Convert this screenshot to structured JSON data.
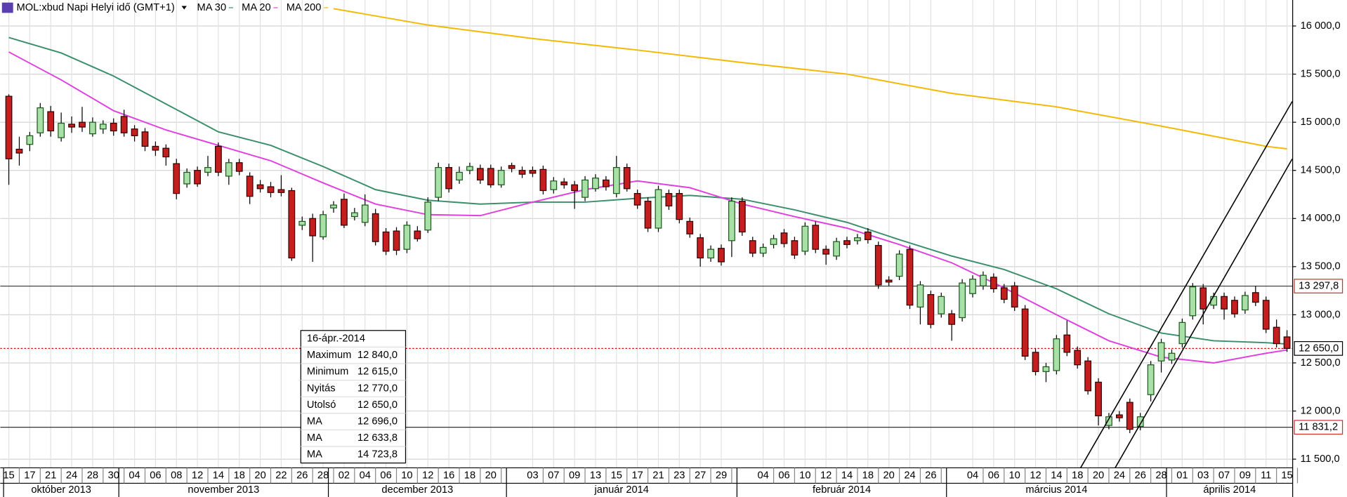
{
  "chart_data": {
    "type": "candlestick",
    "header": "MOL:xbud Napi Helyi idő (GMT+1)",
    "ylim": [
      11410,
      16270
    ],
    "yticks": [
      {
        "value": 11500,
        "label": "11 500,0"
      },
      {
        "value": 12000,
        "label": "12 000,0"
      },
      {
        "value": 12500,
        "label": "12 500,0"
      },
      {
        "value": 13000,
        "label": "13 000,0"
      },
      {
        "value": 13500,
        "label": "13 500,0"
      },
      {
        "value": 14000,
        "label": "14 000,0"
      },
      {
        "value": 14500,
        "label": "14 500,0"
      },
      {
        "value": 15000,
        "label": "15 000,0"
      },
      {
        "value": 15500,
        "label": "15 500,0"
      },
      {
        "value": 16000,
        "label": "16 000,0"
      }
    ],
    "grid": true,
    "up_color": "#a8e0a8",
    "down_color": "#c41e1e",
    "open": [
      15270,
      14720,
      14770,
      14890,
      15110,
      14840,
      14980,
      15000,
      14880,
      14930,
      14990,
      15060,
      14930,
      14900,
      14750,
      14730,
      14570,
      14360,
      14500,
      14480,
      14750,
      14440,
      14580,
      14440,
      14350,
      14330,
      14300,
      14290,
      13930,
      14000,
      13810,
      14110,
      14200,
      14020,
      13960,
      14050,
      13860,
      13870,
      13680,
      13870,
      13880,
      14220,
      14530,
      14400,
      14500,
      14520,
      14520,
      14350,
      14550,
      14500,
      14500,
      14510,
      14300,
      14380,
      14350,
      14220,
      14310,
      14400,
      14260,
      14530,
      14260,
      14180,
      13900,
      14260,
      14260,
      13970,
      13800,
      13590,
      13690,
      13770,
      14180,
      13770,
      13640,
      13730,
      13850,
      13770,
      13660,
      13930,
      13680,
      13610,
      13770,
      13770,
      13860,
      13720,
      13360,
      13400,
      13680,
      13080,
      13210,
      13010,
      13010,
      12970,
      13220,
      13300,
      13390,
      13280,
      13300,
      13060,
      12610,
      12410,
      12420,
      12790,
      12630,
      12520,
      12300,
      11850,
      11960,
      12090,
      11840,
      12170,
      12520,
      12530,
      12700,
      12990,
      13280,
      13100,
      13190,
      13150,
      13050,
      13230,
      13150,
      12870,
      12770
    ],
    "high": [
      15290,
      14850,
      14900,
      15200,
      15170,
      15100,
      15060,
      15160,
      15050,
      15020,
      15040,
      15130,
      14970,
      14940,
      14800,
      14770,
      14620,
      14520,
      14540,
      14650,
      14790,
      14620,
      14620,
      14480,
      14400,
      14380,
      14450,
      14320,
      14020,
      14050,
      14080,
      14180,
      14260,
      14110,
      14250,
      14100,
      13900,
      13910,
      13970,
      13920,
      14220,
      14580,
      14570,
      14540,
      14580,
      14560,
      14560,
      14540,
      14580,
      14540,
      14540,
      14550,
      14430,
      14420,
      14390,
      14440,
      14460,
      14440,
      14650,
      14570,
      14300,
      14220,
      14340,
      14300,
      14300,
      14010,
      13840,
      13720,
      13730,
      14220,
      14220,
      13810,
      13740,
      13830,
      13890,
      13810,
      13960,
      13970,
      13720,
      13800,
      13810,
      13840,
      13900,
      13760,
      13400,
      13670,
      13720,
      13350,
      13250,
      13230,
      13050,
      13370,
      13410,
      13450,
      13430,
      13320,
      13340,
      13100,
      12650,
      12500,
      12790,
      12940,
      12670,
      12560,
      12340,
      11980,
      12000,
      12130,
      11980,
      12520,
      12750,
      12640,
      12960,
      13330,
      13320,
      13230,
      13230,
      13190,
      13240,
      13300,
      13190,
      12950,
      12840
    ],
    "low": [
      14350,
      14550,
      14700,
      14850,
      14850,
      14800,
      14890,
      14900,
      14850,
      14880,
      14860,
      14850,
      14800,
      14700,
      14650,
      14550,
      14200,
      14320,
      14330,
      14440,
      14440,
      14350,
      14450,
      14150,
      14270,
      14220,
      14230,
      13560,
      13880,
      13550,
      13780,
      14060,
      13900,
      13980,
      13920,
      13720,
      13620,
      13620,
      13640,
      13760,
      13850,
      14180,
      14270,
      14360,
      14460,
      14360,
      14320,
      14320,
      14480,
      14420,
      14430,
      14250,
      14260,
      14310,
      14100,
      14180,
      14280,
      14290,
      14220,
      14280,
      14100,
      13860,
      13860,
      14090,
      13950,
      13800,
      13500,
      13550,
      13510,
      13600,
      13820,
      13600,
      13600,
      13690,
      13700,
      13580,
      13620,
      13640,
      13520,
      13570,
      13690,
      13730,
      13740,
      13270,
      13300,
      13360,
      13060,
      12900,
      12860,
      12970,
      12730,
      12930,
      13180,
      13260,
      13230,
      13120,
      13040,
      12530,
      12370,
      12300,
      12380,
      12570,
      12440,
      12170,
      11850,
      11810,
      11890,
      11770,
      11800,
      12100,
      12400,
      12490,
      12660,
      12950,
      12900,
      13060,
      12950,
      12970,
      13010,
      13090,
      12810,
      12660,
      12615
    ],
    "close": [
      14620,
      14680,
      14860,
      15150,
      14910,
      14990,
      14950,
      14950,
      15000,
      14980,
      14910,
      14890,
      14860,
      14750,
      14710,
      14640,
      14260,
      14480,
      14360,
      14530,
      14480,
      14580,
      14490,
      14230,
      14310,
      14270,
      14270,
      13590,
      13970,
      13820,
      14040,
      14140,
      13930,
      14060,
      14140,
      13760,
      13660,
      13670,
      13930,
      13790,
      14170,
      14530,
      14310,
      14480,
      14540,
      14400,
      14350,
      14500,
      14520,
      14460,
      14470,
      14290,
      14390,
      14350,
      14290,
      14400,
      14420,
      14330,
      14530,
      14310,
      14140,
      13900,
      14300,
      14130,
      13990,
      13840,
      13590,
      13680,
      13550,
      14180,
      13860,
      13640,
      13700,
      13790,
      13740,
      13620,
      13920,
      13680,
      13630,
      13760,
      13730,
      13800,
      13780,
      13310,
      13340,
      13630,
      13100,
      13310,
      12900,
      13190,
      12900,
      13330,
      13370,
      13410,
      13270,
      13160,
      13080,
      12570,
      12410,
      12460,
      12750,
      12610,
      12480,
      12210,
      11950,
      11940,
      11930,
      11810,
      11940,
      12480,
      12710,
      12600,
      12920,
      13290,
      13060,
      13190,
      13060,
      13010,
      13200,
      13130,
      12850,
      12700,
      12650
    ],
    "series": [
      {
        "name": "MA 30",
        "color": "#3a8f6a",
        "x": [
          0,
          5,
          10,
          15,
          20,
          25,
          30,
          35,
          40,
          45,
          50,
          55,
          60,
          65,
          70,
          75,
          80,
          85,
          90,
          95,
          100,
          105,
          110,
          115,
          120,
          122
        ],
        "values": [
          15880,
          15720,
          15480,
          15190,
          14900,
          14760,
          14540,
          14300,
          14190,
          14150,
          14170,
          14170,
          14210,
          14240,
          14200,
          14090,
          13960,
          13780,
          13610,
          13470,
          13270,
          13010,
          12810,
          12730,
          12710,
          12696
        ]
      },
      {
        "name": "MA 20",
        "color": "#e040e0",
        "x": [
          0,
          5,
          10,
          15,
          20,
          25,
          30,
          35,
          40,
          45,
          50,
          55,
          60,
          65,
          70,
          75,
          80,
          85,
          90,
          95,
          100,
          105,
          110,
          115,
          120,
          122
        ],
        "values": [
          15730,
          15440,
          15120,
          14920,
          14760,
          14600,
          14370,
          14150,
          14040,
          14030,
          14170,
          14300,
          14390,
          14320,
          14150,
          14020,
          13900,
          13730,
          13540,
          13280,
          13000,
          12730,
          12560,
          12500,
          12600,
          12634
        ]
      },
      {
        "name": "MA 200",
        "color": "#f5b800",
        "x": [
          31,
          40,
          50,
          60,
          70,
          80,
          90,
          100,
          110,
          120,
          122
        ],
        "values": [
          16180,
          16010,
          15870,
          15750,
          15620,
          15500,
          15300,
          15160,
          14960,
          14750,
          14724
        ]
      }
    ],
    "hlines": [
      {
        "value": 13297.8,
        "label": "13 297,8",
        "color": "#d03030"
      },
      {
        "value": 11831.2,
        "label": "11 831,2",
        "color": "#d03030"
      }
    ],
    "last_price": {
      "value": 12650,
      "label": "12 650,0",
      "color": "#d00000"
    },
    "trend_lines": [
      {
        "x": [
          102.3,
          122.5
        ],
        "values": [
          11410,
          15216
        ]
      },
      {
        "x": [
          105.6,
          122.5
        ],
        "values": [
          11410,
          14619
        ]
      }
    ],
    "day_ticks": [
      {
        "value": 0,
        "label": "15"
      },
      {
        "value": 2,
        "label": "17"
      },
      {
        "value": 4,
        "label": "21"
      },
      {
        "value": 6,
        "label": "24"
      },
      {
        "value": 8,
        "label": "28"
      },
      {
        "value": 10,
        "label": "30"
      },
      {
        "value": 12,
        "label": "04"
      },
      {
        "value": 14,
        "label": "06"
      },
      {
        "value": 16,
        "label": "08"
      },
      {
        "value": 18,
        "label": "12"
      },
      {
        "value": 20,
        "label": "14"
      },
      {
        "value": 22,
        "label": "18"
      },
      {
        "value": 24,
        "label": "20"
      },
      {
        "value": 26,
        "label": "22"
      },
      {
        "value": 28,
        "label": "26"
      },
      {
        "value": 30,
        "label": "28"
      },
      {
        "value": 32,
        "label": "02"
      },
      {
        "value": 34,
        "label": "04"
      },
      {
        "value": 36,
        "label": "06"
      },
      {
        "value": 38,
        "label": "10"
      },
      {
        "value": 40,
        "label": "12"
      },
      {
        "value": 42,
        "label": "16"
      },
      {
        "value": 44,
        "label": "18"
      },
      {
        "value": 46,
        "label": "20"
      },
      {
        "value": 50,
        "label": "03"
      },
      {
        "value": 52,
        "label": "07"
      },
      {
        "value": 54,
        "label": "09"
      },
      {
        "value": 56,
        "label": "13"
      },
      {
        "value": 58,
        "label": "15"
      },
      {
        "value": 60,
        "label": "17"
      },
      {
        "value": 62,
        "label": "21"
      },
      {
        "value": 64,
        "label": "23"
      },
      {
        "value": 66,
        "label": "27"
      },
      {
        "value": 68,
        "label": "29"
      },
      {
        "value": 72,
        "label": "04"
      },
      {
        "value": 74,
        "label": "06"
      },
      {
        "value": 76,
        "label": "10"
      },
      {
        "value": 78,
        "label": "12"
      },
      {
        "value": 80,
        "label": "14"
      },
      {
        "value": 82,
        "label": "18"
      },
      {
        "value": 84,
        "label": "20"
      },
      {
        "value": 86,
        "label": "24"
      },
      {
        "value": 88,
        "label": "26"
      },
      {
        "value": 92,
        "label": "04"
      },
      {
        "value": 94,
        "label": "06"
      },
      {
        "value": 96,
        "label": "10"
      },
      {
        "value": 98,
        "label": "12"
      },
      {
        "value": 100,
        "label": "14"
      },
      {
        "value": 102,
        "label": "18"
      },
      {
        "value": 104,
        "label": "20"
      },
      {
        "value": 106,
        "label": "24"
      },
      {
        "value": 108,
        "label": "26"
      },
      {
        "value": 110,
        "label": "28"
      },
      {
        "value": 112,
        "label": "01"
      },
      {
        "value": 114,
        "label": "03"
      },
      {
        "value": 116,
        "label": "07"
      },
      {
        "value": 118,
        "label": "09"
      },
      {
        "value": 120,
        "label": "11"
      },
      {
        "value": 122,
        "label": "15"
      }
    ],
    "month_ticks": [
      {
        "value": 0,
        "label": "október 2013"
      },
      {
        "value": 11,
        "label": "november 2013"
      },
      {
        "value": 31,
        "label": "december 2013"
      },
      {
        "value": 48,
        "label": "január 2014"
      },
      {
        "value": 70,
        "label": "február 2014"
      },
      {
        "value": 90,
        "label": "március 2014"
      },
      {
        "value": 111,
        "label": "április 2014"
      }
    ],
    "tooltip": {
      "title": "16-ápr.-2014",
      "rows": [
        {
          "label": "Maximum",
          "value": "12 840,0",
          "color": "#000000"
        },
        {
          "label": "Minimum",
          "value": "12 615,0",
          "color": "#000000"
        },
        {
          "label": "Nyitás",
          "value": "12 770,0",
          "color": "#000000"
        },
        {
          "label": "Utolsó",
          "value": "12 650,0",
          "color": "#000000"
        },
        {
          "label": "MA",
          "value": "12 696,0",
          "color": "#3a8f6a"
        },
        {
          "label": "MA",
          "value": "12 633,8",
          "color": "#e040e0"
        },
        {
          "label": "MA",
          "value": "14 723,8",
          "color": "#f5b800"
        }
      ]
    }
  }
}
